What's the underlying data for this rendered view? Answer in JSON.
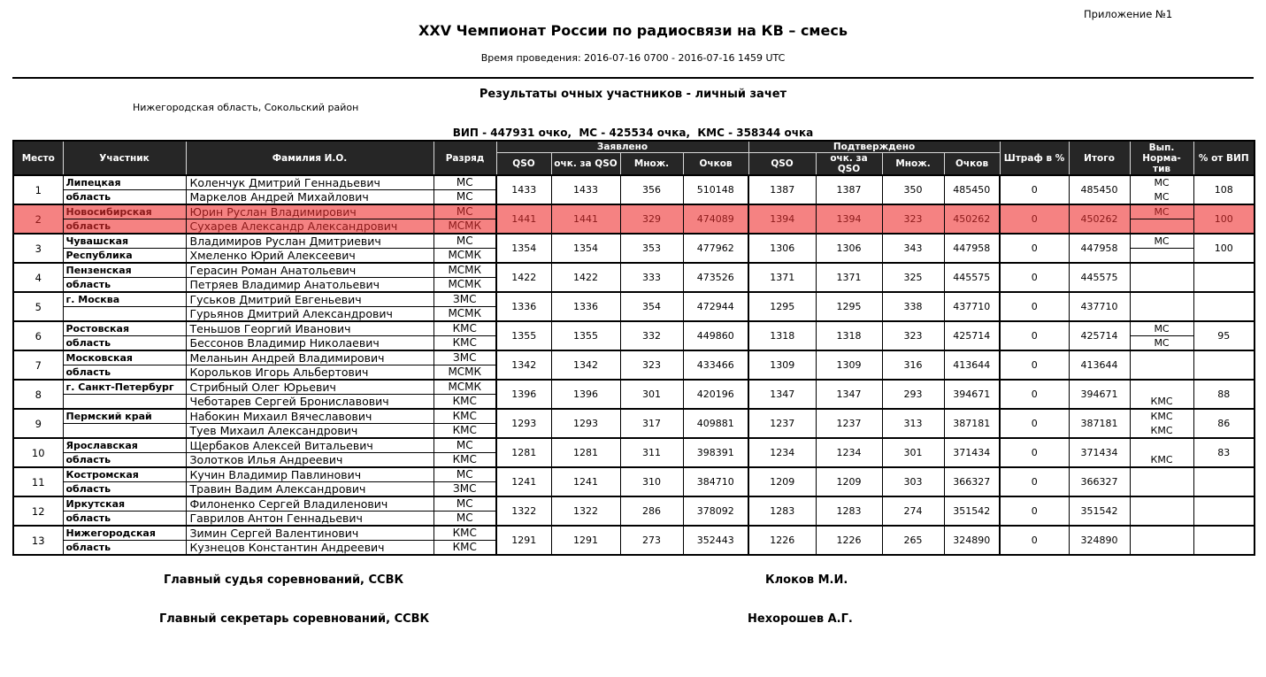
{
  "page": {
    "appendix": "Приложение №1",
    "title": "XXV Чемпионат России по радиосвязи на КВ – смесь",
    "time_line": "Время проведения: 2016-07-16 0700 - 2016-07-16 1459 UTC",
    "subtitle": "Результаты очных участников - личный зачет",
    "location": "Нижегородская область, Сокольский район",
    "norms_line": "ВИП - 447931 очко,  МС - 425534 очка,  КМС - 358344 очка"
  },
  "colors": {
    "header_bg": "#262626",
    "highlight_bg": "#F58282",
    "highlight_text": "#8B1A1A"
  },
  "table": {
    "headers": {
      "place": "Место",
      "participant": "Участник",
      "surname": "Фамилия И.О.",
      "rank": "Разряд",
      "claimed": "Заявлено",
      "confirmed": "Подтверждено",
      "qso": "QSO",
      "pts_qso": "очк. за QSO",
      "mult": "Множ.",
      "score": "Очков",
      "penalty": "Штраф в %",
      "total": "Итого",
      "norm_l1": "Вып. Норма-",
      "norm_l2": "тив",
      "vip": "% от ВИП"
    },
    "rows": [
      {
        "place": 1,
        "region_line1": "Липецкая",
        "region_line2": "область",
        "name1": "Коленчук Дмитрий Геннадьевич",
        "rank1": "МС",
        "name2": "Маркелов Андрей Михайлович",
        "rank2": "МС",
        "claimed": {
          "qso": 1433,
          "pts": 1433,
          "mult": 356,
          "score": 510148
        },
        "confirmed": {
          "qso": 1387,
          "pts": 1387,
          "mult": 350,
          "score": 485450
        },
        "penalty": 0,
        "total": 485450,
        "norm1": "МС",
        "norm2": "МС",
        "norm_divider": false,
        "vip_pct": "108",
        "highlight": false
      },
      {
        "place": 2,
        "region_line1": "Новосибирская",
        "region_line2": "область",
        "name1": "Юрин Руслан Владимирович",
        "rank1": "МС",
        "name2": "Сухарев Александр Александрович",
        "rank2": "МСМК",
        "claimed": {
          "qso": 1441,
          "pts": 1441,
          "mult": 329,
          "score": 474089
        },
        "confirmed": {
          "qso": 1394,
          "pts": 1394,
          "mult": 323,
          "score": 450262
        },
        "penalty": 0,
        "total": 450262,
        "norm1": "МС",
        "norm2": "",
        "norm_divider": true,
        "vip_pct": "100",
        "highlight": true
      },
      {
        "place": 3,
        "region_line1": "Чувашская",
        "region_line2": "Республика",
        "name1": "Владимиров Руслан Дмитриевич",
        "rank1": "МС",
        "name2": "Хмеленко Юрий Алексеевич",
        "rank2": "МСМК",
        "claimed": {
          "qso": 1354,
          "pts": 1354,
          "mult": 353,
          "score": 477962
        },
        "confirmed": {
          "qso": 1306,
          "pts": 1306,
          "mult": 343,
          "score": 447958
        },
        "penalty": 0,
        "total": 447958,
        "norm1": "МС",
        "norm2": "",
        "norm_divider": true,
        "vip_pct": "100",
        "highlight": false
      },
      {
        "place": 4,
        "region_line1": "Пензенская",
        "region_line2": "область",
        "name1": "Герасин Роман Анатольевич",
        "rank1": "МСМК",
        "name2": "Петряев Владимир Анатольевич",
        "rank2": "МСМК",
        "claimed": {
          "qso": 1422,
          "pts": 1422,
          "mult": 333,
          "score": 473526
        },
        "confirmed": {
          "qso": 1371,
          "pts": 1371,
          "mult": 325,
          "score": 445575
        },
        "penalty": 0,
        "total": 445575,
        "norm1": "",
        "norm2": "",
        "norm_divider": false,
        "vip_pct": "",
        "highlight": false
      },
      {
        "place": 5,
        "region_line1": "г. Москва",
        "region_line2": "",
        "name1": "Гуськов Дмитрий Евгеньевич",
        "rank1": "ЗМС",
        "name2": "Гурьянов Дмитрий Александрович",
        "rank2": "МСМК",
        "claimed": {
          "qso": 1336,
          "pts": 1336,
          "mult": 354,
          "score": 472944
        },
        "confirmed": {
          "qso": 1295,
          "pts": 1295,
          "mult": 338,
          "score": 437710
        },
        "penalty": 0,
        "total": 437710,
        "norm1": "",
        "norm2": "",
        "norm_divider": false,
        "vip_pct": "",
        "highlight": false
      },
      {
        "place": 6,
        "region_line1": "Ростовская",
        "region_line2": "область",
        "name1": "Теньшов Георгий Иванович",
        "rank1": "КМС",
        "name2": "Бессонов Владимир Николаевич",
        "rank2": "КМС",
        "claimed": {
          "qso": 1355,
          "pts": 1355,
          "mult": 332,
          "score": 449860
        },
        "confirmed": {
          "qso": 1318,
          "pts": 1318,
          "mult": 323,
          "score": 425714
        },
        "penalty": 0,
        "total": 425714,
        "norm1": "МС",
        "norm2": "МС",
        "norm_divider": true,
        "vip_pct": "95",
        "highlight": false
      },
      {
        "place": 7,
        "region_line1": "Московская",
        "region_line2": "область",
        "name1": "Меланьин Андрей Владимирович",
        "rank1": "ЗМС",
        "name2": "Корольков Игорь Альбертович",
        "rank2": "МСМК",
        "claimed": {
          "qso": 1342,
          "pts": 1342,
          "mult": 323,
          "score": 433466
        },
        "confirmed": {
          "qso": 1309,
          "pts": 1309,
          "mult": 316,
          "score": 413644
        },
        "penalty": 0,
        "total": 413644,
        "norm1": "",
        "norm2": "",
        "norm_divider": false,
        "vip_pct": "",
        "highlight": false
      },
      {
        "place": 8,
        "region_line1": "г. Санкт-Петербург",
        "region_line2": "",
        "name1": "Стрибный Олег Юрьевич",
        "rank1": "МСМК",
        "name2": "Чеботарев Сергей Брониславович",
        "rank2": "КМС",
        "claimed": {
          "qso": 1396,
          "pts": 1396,
          "mult": 301,
          "score": 420196
        },
        "confirmed": {
          "qso": 1347,
          "pts": 1347,
          "mult": 293,
          "score": 394671
        },
        "penalty": 0,
        "total": 394671,
        "norm1": "",
        "norm2": "КМС",
        "norm_divider": false,
        "vip_pct": "88",
        "highlight": false
      },
      {
        "place": 9,
        "region_line1": "Пермский край",
        "region_line2": "",
        "name1": "Набокин Михаил Вячеславович",
        "rank1": "КМС",
        "name2": "Туев Михаил Александрович",
        "rank2": "КМС",
        "claimed": {
          "qso": 1293,
          "pts": 1293,
          "mult": 317,
          "score": 409881
        },
        "confirmed": {
          "qso": 1237,
          "pts": 1237,
          "mult": 313,
          "score": 387181
        },
        "penalty": 0,
        "total": 387181,
        "norm1": "КМС",
        "norm2": "КМС",
        "norm_divider": false,
        "vip_pct": "86",
        "highlight": false
      },
      {
        "place": 10,
        "region_line1": "Ярославская",
        "region_line2": "область",
        "name1": "Щербаков Алексей Витальевич",
        "rank1": "МС",
        "name2": "Золотков Илья Андреевич",
        "rank2": "КМС",
        "claimed": {
          "qso": 1281,
          "pts": 1281,
          "mult": 311,
          "score": 398391
        },
        "confirmed": {
          "qso": 1234,
          "pts": 1234,
          "mult": 301,
          "score": 371434
        },
        "penalty": 0,
        "total": 371434,
        "norm1": "",
        "norm2": "КМС",
        "norm_divider": false,
        "vip_pct": "83",
        "highlight": false
      },
      {
        "place": 11,
        "region_line1": "Костромская",
        "region_line2": "область",
        "name1": "Кучин Владимир Павлинович",
        "rank1": "МС",
        "name2": "Травин Вадим Александрович",
        "rank2": "ЗМС",
        "claimed": {
          "qso": 1241,
          "pts": 1241,
          "mult": 310,
          "score": 384710
        },
        "confirmed": {
          "qso": 1209,
          "pts": 1209,
          "mult": 303,
          "score": 366327
        },
        "penalty": 0,
        "total": 366327,
        "norm1": "",
        "norm2": "",
        "norm_divider": false,
        "vip_pct": "",
        "highlight": false
      },
      {
        "place": 12,
        "region_line1": "Иркутская",
        "region_line2": "область",
        "name1": "Филоненко Сергей Владиленович",
        "rank1": "МС",
        "name2": "Гаврилов Антон Геннадьевич",
        "rank2": "МС",
        "claimed": {
          "qso": 1322,
          "pts": 1322,
          "mult": 286,
          "score": 378092
        },
        "confirmed": {
          "qso": 1283,
          "pts": 1283,
          "mult": 274,
          "score": 351542
        },
        "penalty": 0,
        "total": 351542,
        "norm1": "",
        "norm2": "",
        "norm_divider": false,
        "vip_pct": "",
        "highlight": false
      },
      {
        "place": 13,
        "region_line1": "Нижегородская",
        "region_line2": "область",
        "name1": "Зимин Сергей Валентинович",
        "rank1": "КМС",
        "name2": "Кузнецов Константин Андреевич",
        "rank2": "КМС",
        "claimed": {
          "qso": 1291,
          "pts": 1291,
          "mult": 273,
          "score": 352443
        },
        "confirmed": {
          "qso": 1226,
          "pts": 1226,
          "mult": 265,
          "score": 324890
        },
        "penalty": 0,
        "total": 324890,
        "norm1": "",
        "norm2": "",
        "norm_divider": false,
        "vip_pct": "",
        "highlight": false
      }
    ]
  },
  "footer": {
    "judge_label": "Главный судья соревнований, ССВК",
    "judge_name": "Клоков М.И.",
    "secretary_label": "Главный секретарь соревнований, ССВК",
    "secretary_name": "Нехорошев А.Г."
  }
}
